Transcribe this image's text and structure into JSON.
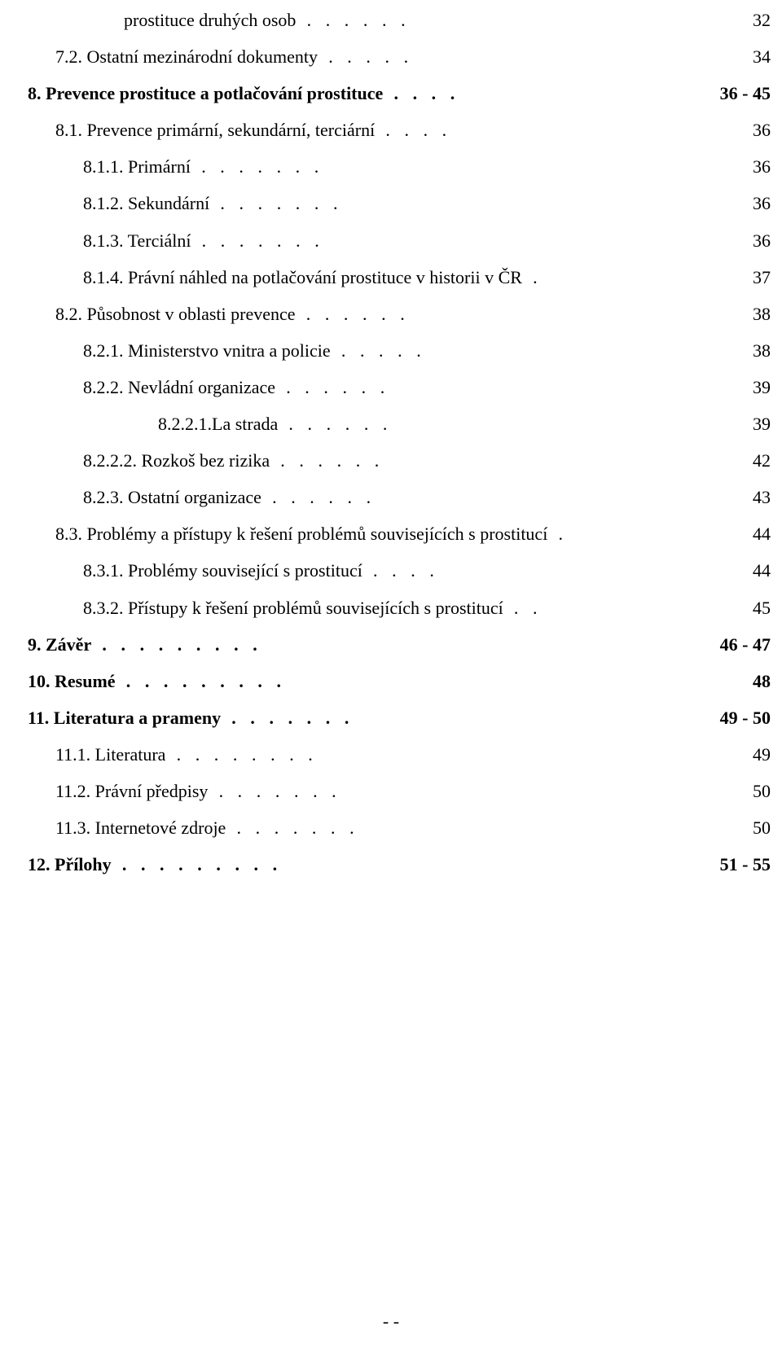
{
  "toc": [
    {
      "indent": "ind4",
      "bold": false,
      "label": "prostituce druhých osob",
      "dots": 6,
      "page": "32"
    },
    {
      "indent": "ind2",
      "bold": false,
      "label": "7.2. Ostatní mezinárodní dokumenty",
      "dots": 5,
      "page": "34"
    },
    {
      "indent": "ind1",
      "bold": true,
      "label": "8. Prevence prostituce a potlačování prostituce",
      "dots": 4,
      "page": "36 - 45"
    },
    {
      "indent": "ind2",
      "bold": false,
      "label": "8.1. Prevence primární, sekundární, terciární",
      "dots": 4,
      "page": "36"
    },
    {
      "indent": "ind3",
      "bold": false,
      "label": "8.1.1. Primární",
      "dots": 7,
      "page": "36"
    },
    {
      "indent": "ind3",
      "bold": false,
      "label": "8.1.2. Sekundární",
      "dots": 7,
      "page": "36"
    },
    {
      "indent": "ind3",
      "bold": false,
      "label": "8.1.3. Terciální",
      "dots": 7,
      "page": "36"
    },
    {
      "indent": "ind3",
      "bold": false,
      "label": "8.1.4. Právní náhled na potlačování prostituce v historii v ČR",
      "dots": 1,
      "page": "37"
    },
    {
      "indent": "ind2",
      "bold": false,
      "label": "8.2. Působnost v oblasti prevence",
      "dots": 6,
      "page": "38"
    },
    {
      "indent": "ind3",
      "bold": false,
      "label": "8.2.1. Ministerstvo vnitra a policie",
      "dots": 5,
      "page": "38"
    },
    {
      "indent": "ind3",
      "bold": false,
      "label": "8.2.2. Nevládní organizace",
      "dots": 6,
      "page": "39"
    },
    {
      "indent": "ind5",
      "bold": false,
      "label": "8.2.2.1.La strada",
      "dots": 6,
      "page": "39"
    },
    {
      "indent": "ind3",
      "bold": false,
      "label": "8.2.2.2. Rozkoš bez rizika",
      "dots": 6,
      "page": "42"
    },
    {
      "indent": "ind3",
      "bold": false,
      "label": "8.2.3. Ostatní organizace",
      "dots": 6,
      "page": "43"
    },
    {
      "indent": "ind2",
      "bold": false,
      "label": "8.3. Problémy a přístupy k řešení problémů souvisejících s prostitucí",
      "dots": 1,
      "page": "44"
    },
    {
      "indent": "ind3",
      "bold": false,
      "label": "8.3.1. Problémy související s prostitucí",
      "dots": 4,
      "page": "44"
    },
    {
      "indent": "ind3",
      "bold": false,
      "label": "8.3.2. Přístupy k řešení problémů souvisejících s prostitucí",
      "dots": 2,
      "page": "45"
    },
    {
      "indent": "ind1",
      "bold": true,
      "label": "9. Závěr",
      "dots": 9,
      "page": "46 - 47"
    },
    {
      "indent": "ind0",
      "bold": true,
      "label": "10. Resumé",
      "dots": 9,
      "page": "48"
    },
    {
      "indent": "ind0",
      "bold": true,
      "label": "11. Literatura a prameny",
      "dots": 7,
      "page": "49 - 50"
    },
    {
      "indent": "ind2",
      "bold": false,
      "label": "11.1. Literatura",
      "dots": 8,
      "page": "49"
    },
    {
      "indent": "ind2",
      "bold": false,
      "label": "11.2. Právní předpisy",
      "dots": 7,
      "page": "50"
    },
    {
      "indent": "ind2",
      "bold": false,
      "label": "11.3. Internetové zdroje",
      "dots": 7,
      "page": "50"
    },
    {
      "indent": "ind0",
      "bold": true,
      "label": "12. Přílohy",
      "dots": 9,
      "page": "51 - 55"
    }
  ],
  "footer": "-  -"
}
